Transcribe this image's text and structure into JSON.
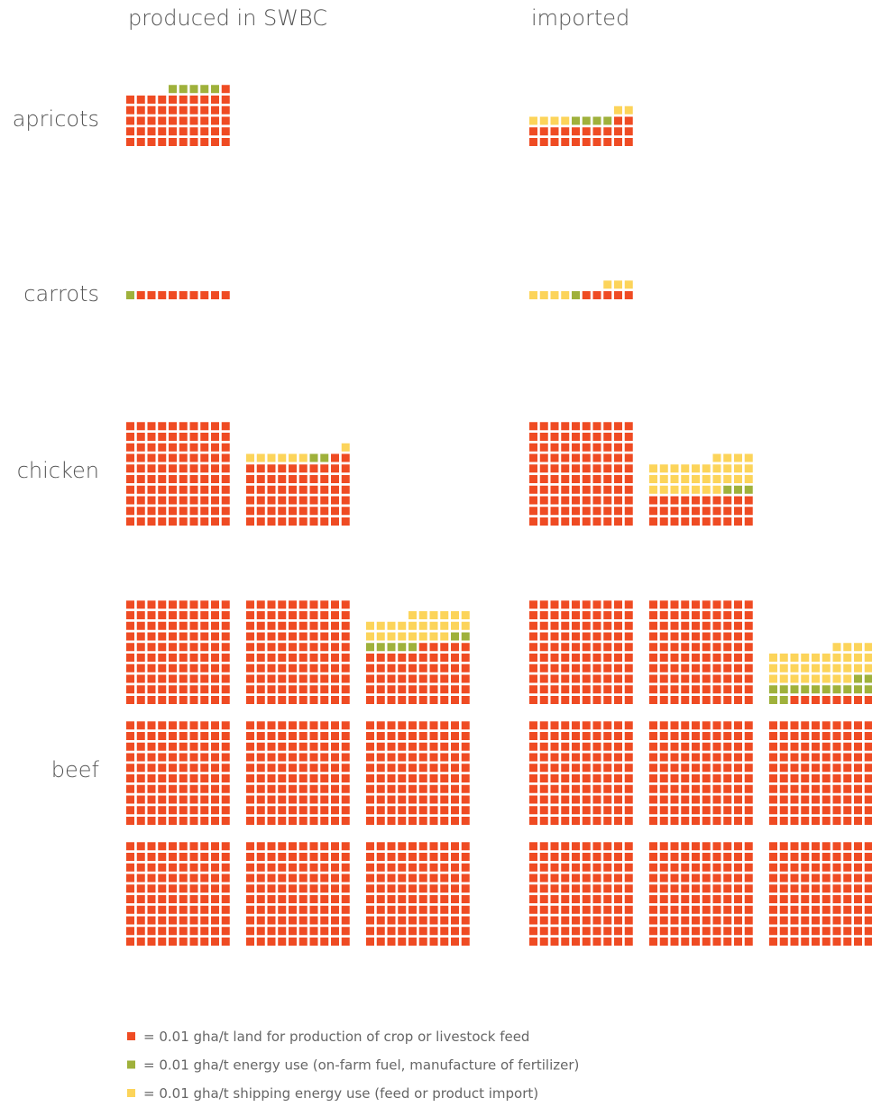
{
  "chart_data": {
    "type": "waffle",
    "columns": [
      "produced in SWBC",
      "imported"
    ],
    "categories": [
      "apricots",
      "carrots",
      "chicken",
      "beef"
    ],
    "series": [
      {
        "name": "= 0.01 gha/t land for production of crop or livestock feed",
        "color": "#ef4b23",
        "values": [
          [
            51,
            22
          ],
          [
            9,
            5
          ],
          [
            162,
            130
          ],
          [
            855,
            808
          ]
        ]
      },
      {
        "name": "= 0.01 gha/t energy use (on-farm fuel, manufacture of fertilizer)",
        "color": "#9fb13b",
        "values": [
          [
            5,
            4
          ],
          [
            1,
            1
          ],
          [
            2,
            3
          ],
          [
            7,
            14
          ]
        ]
      },
      {
        "name": "= 0.01 gha/t shipping energy use (feed or product import)",
        "color": "#fcd45a",
        "values": [
          [
            0,
            6
          ],
          [
            0,
            7
          ],
          [
            7,
            31
          ],
          [
            24,
            32
          ]
        ]
      }
    ]
  }
}
